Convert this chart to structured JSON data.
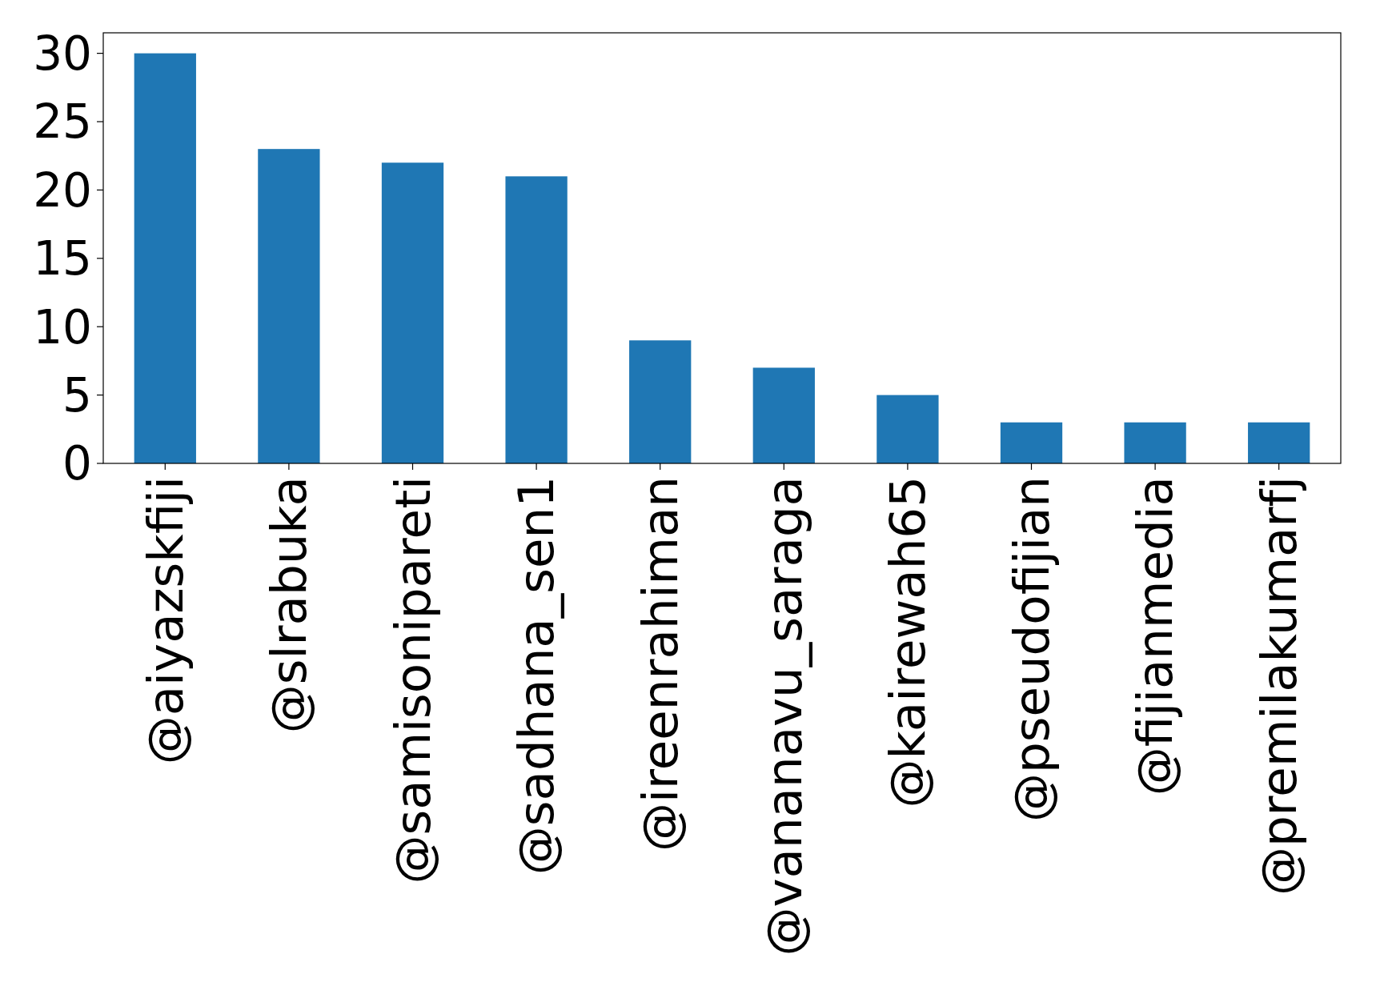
{
  "chart_data": {
    "type": "bar",
    "categories": [
      "@aiyazskfiji",
      "@slrabuka",
      "@samisonipareti",
      "@sadhana_sen1",
      "@ireenrahiman",
      "@vananavu_saraga",
      "@kairewah65",
      "@pseudofijian",
      "@fijianmedia",
      "@premilakumarfj"
    ],
    "values": [
      30,
      23,
      22,
      21,
      9,
      7,
      5,
      3,
      3,
      3
    ],
    "color": "#1f77b4",
    "ylim": [
      0,
      31.5
    ],
    "yticks": [
      0,
      5,
      10,
      15,
      20,
      25,
      30
    ],
    "grid": false
  }
}
